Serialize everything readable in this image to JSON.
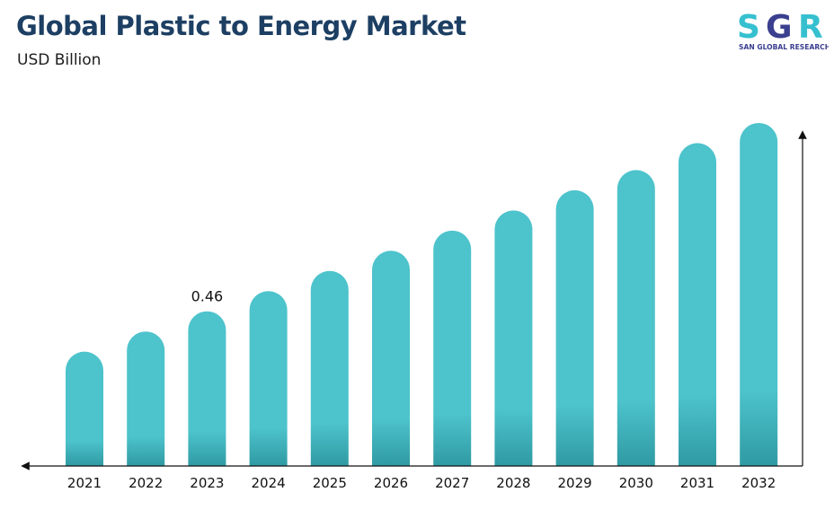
{
  "header": {
    "title": "Global Plastic to Energy Market",
    "subtitle": "USD Billion"
  },
  "logo": {
    "letters": "SGR",
    "tagline": "SAN GLOBAL RESEARCH",
    "colors": {
      "s": "#36c0cf",
      "g": "#3a3f8f",
      "r": "#36c0cf",
      "tagline": "#3a3f8f"
    }
  },
  "chart_data": {
    "type": "bar",
    "title": "Global Plastic to Energy Market",
    "subtitle": "USD Billion",
    "xlabel": "",
    "ylabel": "",
    "categories": [
      "2021",
      "2022",
      "2023",
      "2024",
      "2025",
      "2026",
      "2027",
      "2028",
      "2029",
      "2030",
      "2031",
      "2032"
    ],
    "values": [
      0.34,
      0.4,
      0.46,
      0.52,
      0.58,
      0.64,
      0.7,
      0.76,
      0.82,
      0.88,
      0.96,
      1.02
    ],
    "data_labels": [
      {
        "category": "2023",
        "text": "0.46"
      }
    ],
    "ylim": [
      0,
      1.1
    ],
    "grid": false,
    "legend": "none",
    "bar_color": "#4dc3cc",
    "bar_shadow_color": "#2f9aa3",
    "axis_color": "#111111"
  }
}
